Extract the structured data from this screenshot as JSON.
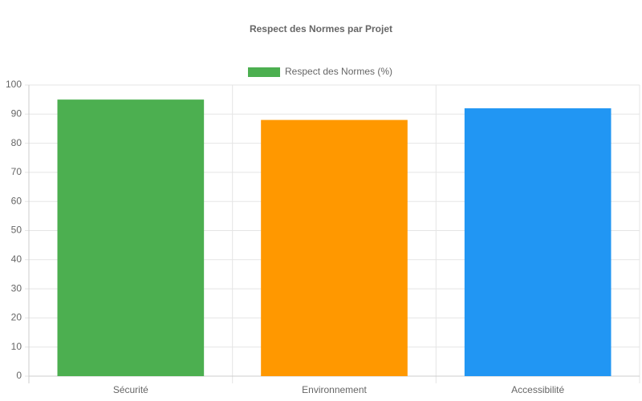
{
  "chart_data": {
    "type": "bar",
    "title": "Respect des Normes par Projet",
    "categories": [
      "Sécurité",
      "Environnement",
      "Accessibilité"
    ],
    "series": [
      {
        "name": "Respect des Normes (%)",
        "colors": [
          "#4caf50",
          "#ff9800",
          "#2196f3"
        ],
        "values": [
          95,
          88,
          92
        ]
      }
    ],
    "ylim": [
      0,
      100
    ],
    "yticks": [
      0,
      10,
      20,
      30,
      40,
      50,
      60,
      70,
      80,
      90,
      100
    ],
    "grid": true,
    "legend": "top"
  }
}
